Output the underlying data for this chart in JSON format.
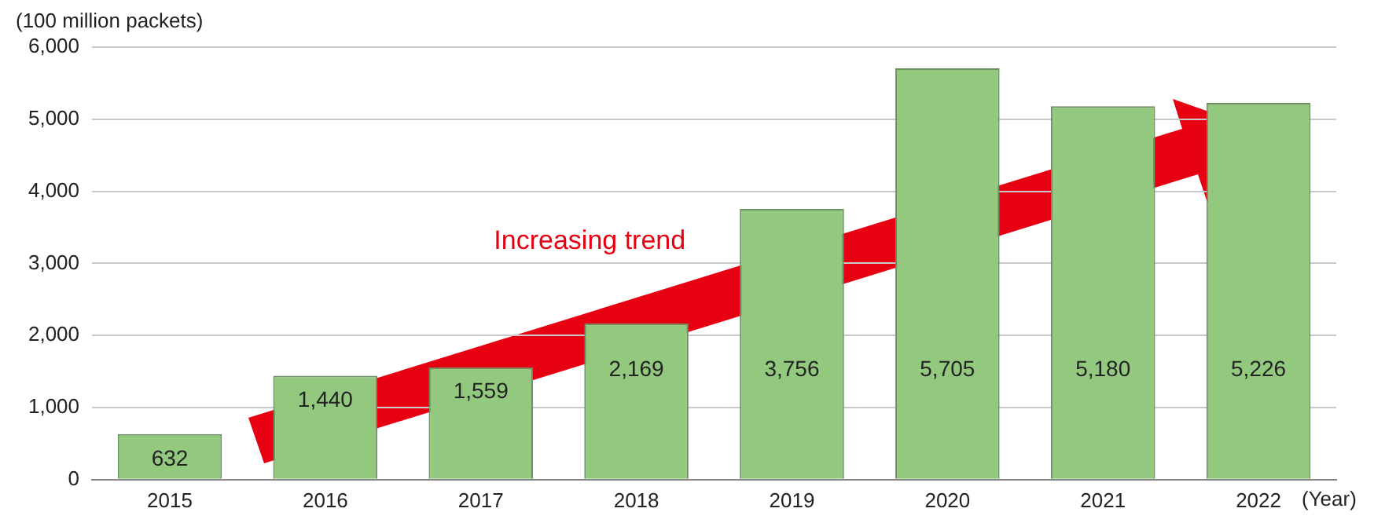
{
  "chart_data": {
    "type": "bar",
    "ylabel": "(100 million packets)",
    "xlabel": "(Year)",
    "categories": [
      "2015",
      "2016",
      "2017",
      "2018",
      "2019",
      "2020",
      "2021",
      "2022"
    ],
    "values": [
      632,
      1440,
      1559,
      2169,
      3756,
      5705,
      5180,
      5226
    ],
    "color": "#93c87f",
    "ylim": [
      0,
      6000
    ],
    "yticks": [
      {
        "value": 0,
        "label": "0"
      },
      {
        "value": 1000,
        "label": "1,000"
      },
      {
        "value": 2000,
        "label": "2,000"
      },
      {
        "value": 3000,
        "label": "3,000"
      },
      {
        "value": 4000,
        "label": "4,000"
      },
      {
        "value": 5000,
        "label": "5,000"
      },
      {
        "value": 6000,
        "label": "6,000"
      }
    ],
    "value_labels": [
      "632",
      "1,440",
      "1,559",
      "2,169",
      "3,756",
      "5,705",
      "5,180",
      "5,226"
    ],
    "annotations": [
      "Increasing trend"
    ],
    "grid": "y",
    "legend": false
  }
}
